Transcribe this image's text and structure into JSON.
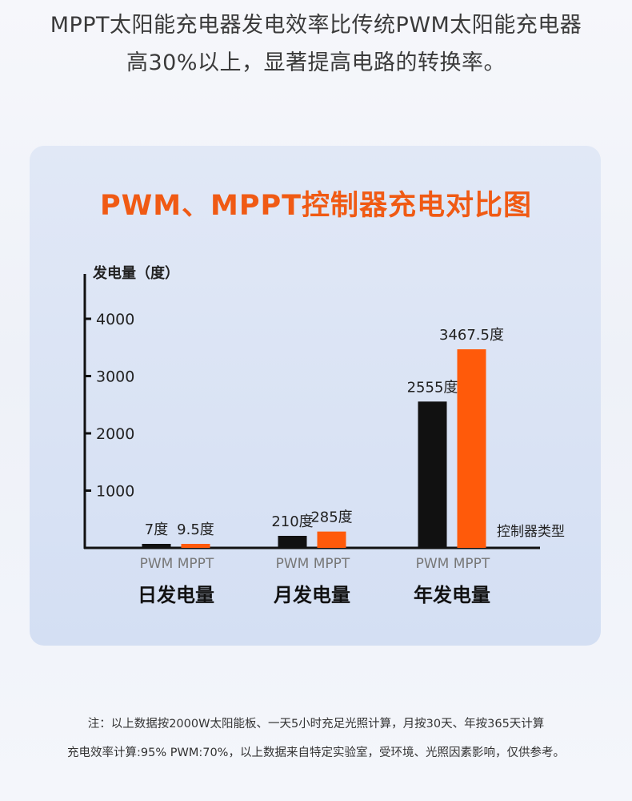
{
  "headline": {
    "line1": "MPPT太阳能充电器发电效率比传统PWM太阳能充电器",
    "line2": "高30%以上，显著提高电路的转换率。"
  },
  "colors": {
    "pwm": "#111111",
    "mppt": "#ff5a0a",
    "title": "#f05a14"
  },
  "chart_data": {
    "type": "bar",
    "title": "PWM、MPPT控制器充电对比图",
    "ylabel": "发电量（度）",
    "xlabel": "控制器类型",
    "ylim": [
      0,
      4400
    ],
    "yticks": [
      "1000",
      "2000",
      "3000",
      "4000"
    ],
    "ytick_values": [
      1000,
      2000,
      3000,
      4000
    ],
    "categories": [
      "日发电量",
      "月发电量",
      "年发电量"
    ],
    "series": [
      {
        "name": "PWM",
        "values": [
          7,
          210,
          2555
        ],
        "labels": [
          "7度",
          "210度",
          "2555度"
        ]
      },
      {
        "name": "MPPT",
        "values": [
          9.5,
          285,
          3467.5
        ],
        "labels": [
          "9.5度",
          "285度",
          "3467.5度"
        ]
      }
    ],
    "grid": false,
    "legend": "none"
  },
  "footnotes": {
    "line1": "注：以上数据按2000W太阳能板、一天5小时充足光照计算，月按30天、年按365天计算",
    "line2": "充电效率计算:95% PWM:70%，以上数据来自特定实验室，受环境、光照因素影响，仅供参考。"
  }
}
